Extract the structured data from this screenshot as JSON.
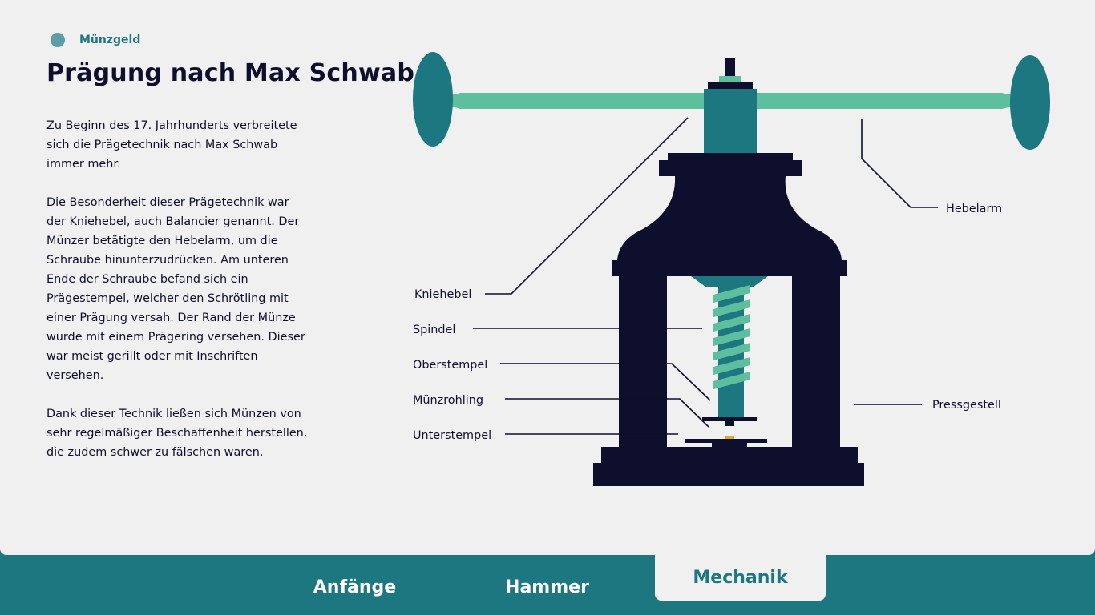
{
  "header": {
    "category": "Münzgeld",
    "title": "Prägung nach Max Schwab"
  },
  "content": {
    "paragraphs": [
      "Zu Beginn des 17. Jahrhunderts verbreitete sich die Prägetechnik nach Max Schwab immer mehr.",
      "Die Besonderheit dieser Prägetechnik war der Kniehebel, auch Balancier genannt. Der Münzer betätigte den Hebelarm, um die Schraube hinunterzudrücken. Am unteren Ende der Schraube befand sich ein Prägestempel, welcher den Schrötling mit einer Prägung versah. Der Rand der Münze wurde mit einem Prägering versehen. Dieser war meist gerillt oder mit Inschriften versehen.",
      "Dank dieser Technik ließen sich Münzen von sehr regelmäßiger Beschaffenheit herstellen, die zudem schwer zu fälschen waren."
    ]
  },
  "diagram": {
    "labels": {
      "kniehebel": "Kniehebel",
      "spindel": "Spindel",
      "oberstempel": "Oberstempel",
      "muenzrohling": "Münzrohling",
      "unterstempel": "Unterstempel",
      "hebelarm": "Hebelarm",
      "pressgestell": "Pressgestell"
    }
  },
  "nav": {
    "tabs": [
      "Anfänge",
      "Hammer",
      "Mechanik"
    ],
    "active": "Mechanik"
  },
  "colors": {
    "dark": "#0d0f2c",
    "teal": "#1c7780",
    "mint": "#5dbf9e",
    "background": "#f1f0f0",
    "gold": "#e5a532"
  }
}
